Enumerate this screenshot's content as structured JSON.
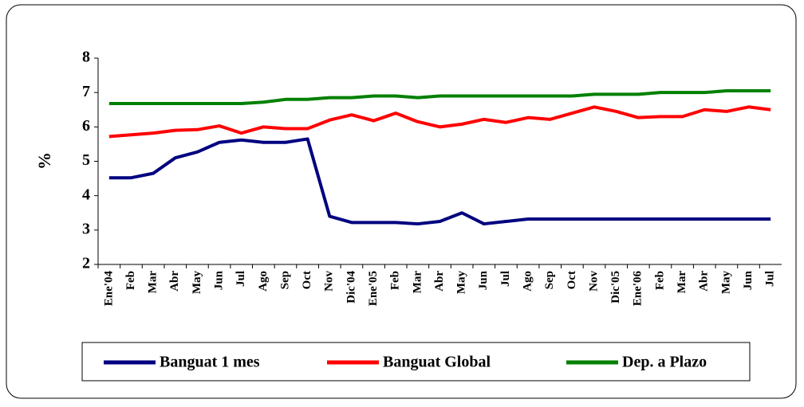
{
  "chart_data": {
    "type": "line",
    "ylabel": "%",
    "categories": [
      "Ene'04",
      "Feb",
      "Mar",
      "Abr",
      "May",
      "Jun",
      "Jul",
      "Ago",
      "Sep",
      "Oct",
      "Nov",
      "Dic'04",
      "Ene'05",
      "Feb",
      "Mar",
      "Abr",
      "May",
      "Jun",
      "Jul",
      "Ago",
      "Sep",
      "Oct",
      "Nov",
      "Dic'05",
      "Ene'06",
      "Feb",
      "Mar",
      "Abr",
      "May",
      "Jun",
      "Jul"
    ],
    "series": [
      {
        "name": "Banguat 1 mes",
        "color": "#000080",
        "values": [
          4.52,
          4.52,
          4.65,
          5.1,
          5.27,
          5.55,
          5.62,
          5.55,
          5.55,
          5.65,
          3.4,
          3.22,
          3.22,
          3.22,
          3.18,
          3.25,
          3.5,
          3.18,
          3.25,
          3.32,
          3.32,
          3.32,
          3.32,
          3.32,
          3.32,
          3.32,
          3.32,
          3.32,
          3.32,
          3.32,
          3.32
        ]
      },
      {
        "name": "Banguat Global",
        "color": "#ff0000",
        "values": [
          5.72,
          5.77,
          5.82,
          5.9,
          5.92,
          6.03,
          5.82,
          6.0,
          5.95,
          5.95,
          6.2,
          6.35,
          6.18,
          6.4,
          6.15,
          6.0,
          6.08,
          6.22,
          6.13,
          6.27,
          6.22,
          6.4,
          6.58,
          6.45,
          6.27,
          6.3,
          6.3,
          6.5,
          6.45,
          6.58,
          6.5
        ]
      },
      {
        "name": "Dep. a Plazo",
        "color": "#008000",
        "values": [
          6.68,
          6.68,
          6.68,
          6.68,
          6.68,
          6.68,
          6.68,
          6.72,
          6.8,
          6.8,
          6.85,
          6.85,
          6.9,
          6.9,
          6.85,
          6.9,
          6.9,
          6.9,
          6.9,
          6.9,
          6.9,
          6.9,
          6.95,
          6.95,
          6.95,
          7.0,
          7.0,
          7.0,
          7.05,
          7.05,
          7.05
        ]
      }
    ],
    "ylim": [
      2,
      8
    ],
    "yticks": [
      2,
      3,
      4,
      5,
      6,
      7,
      8
    ]
  }
}
